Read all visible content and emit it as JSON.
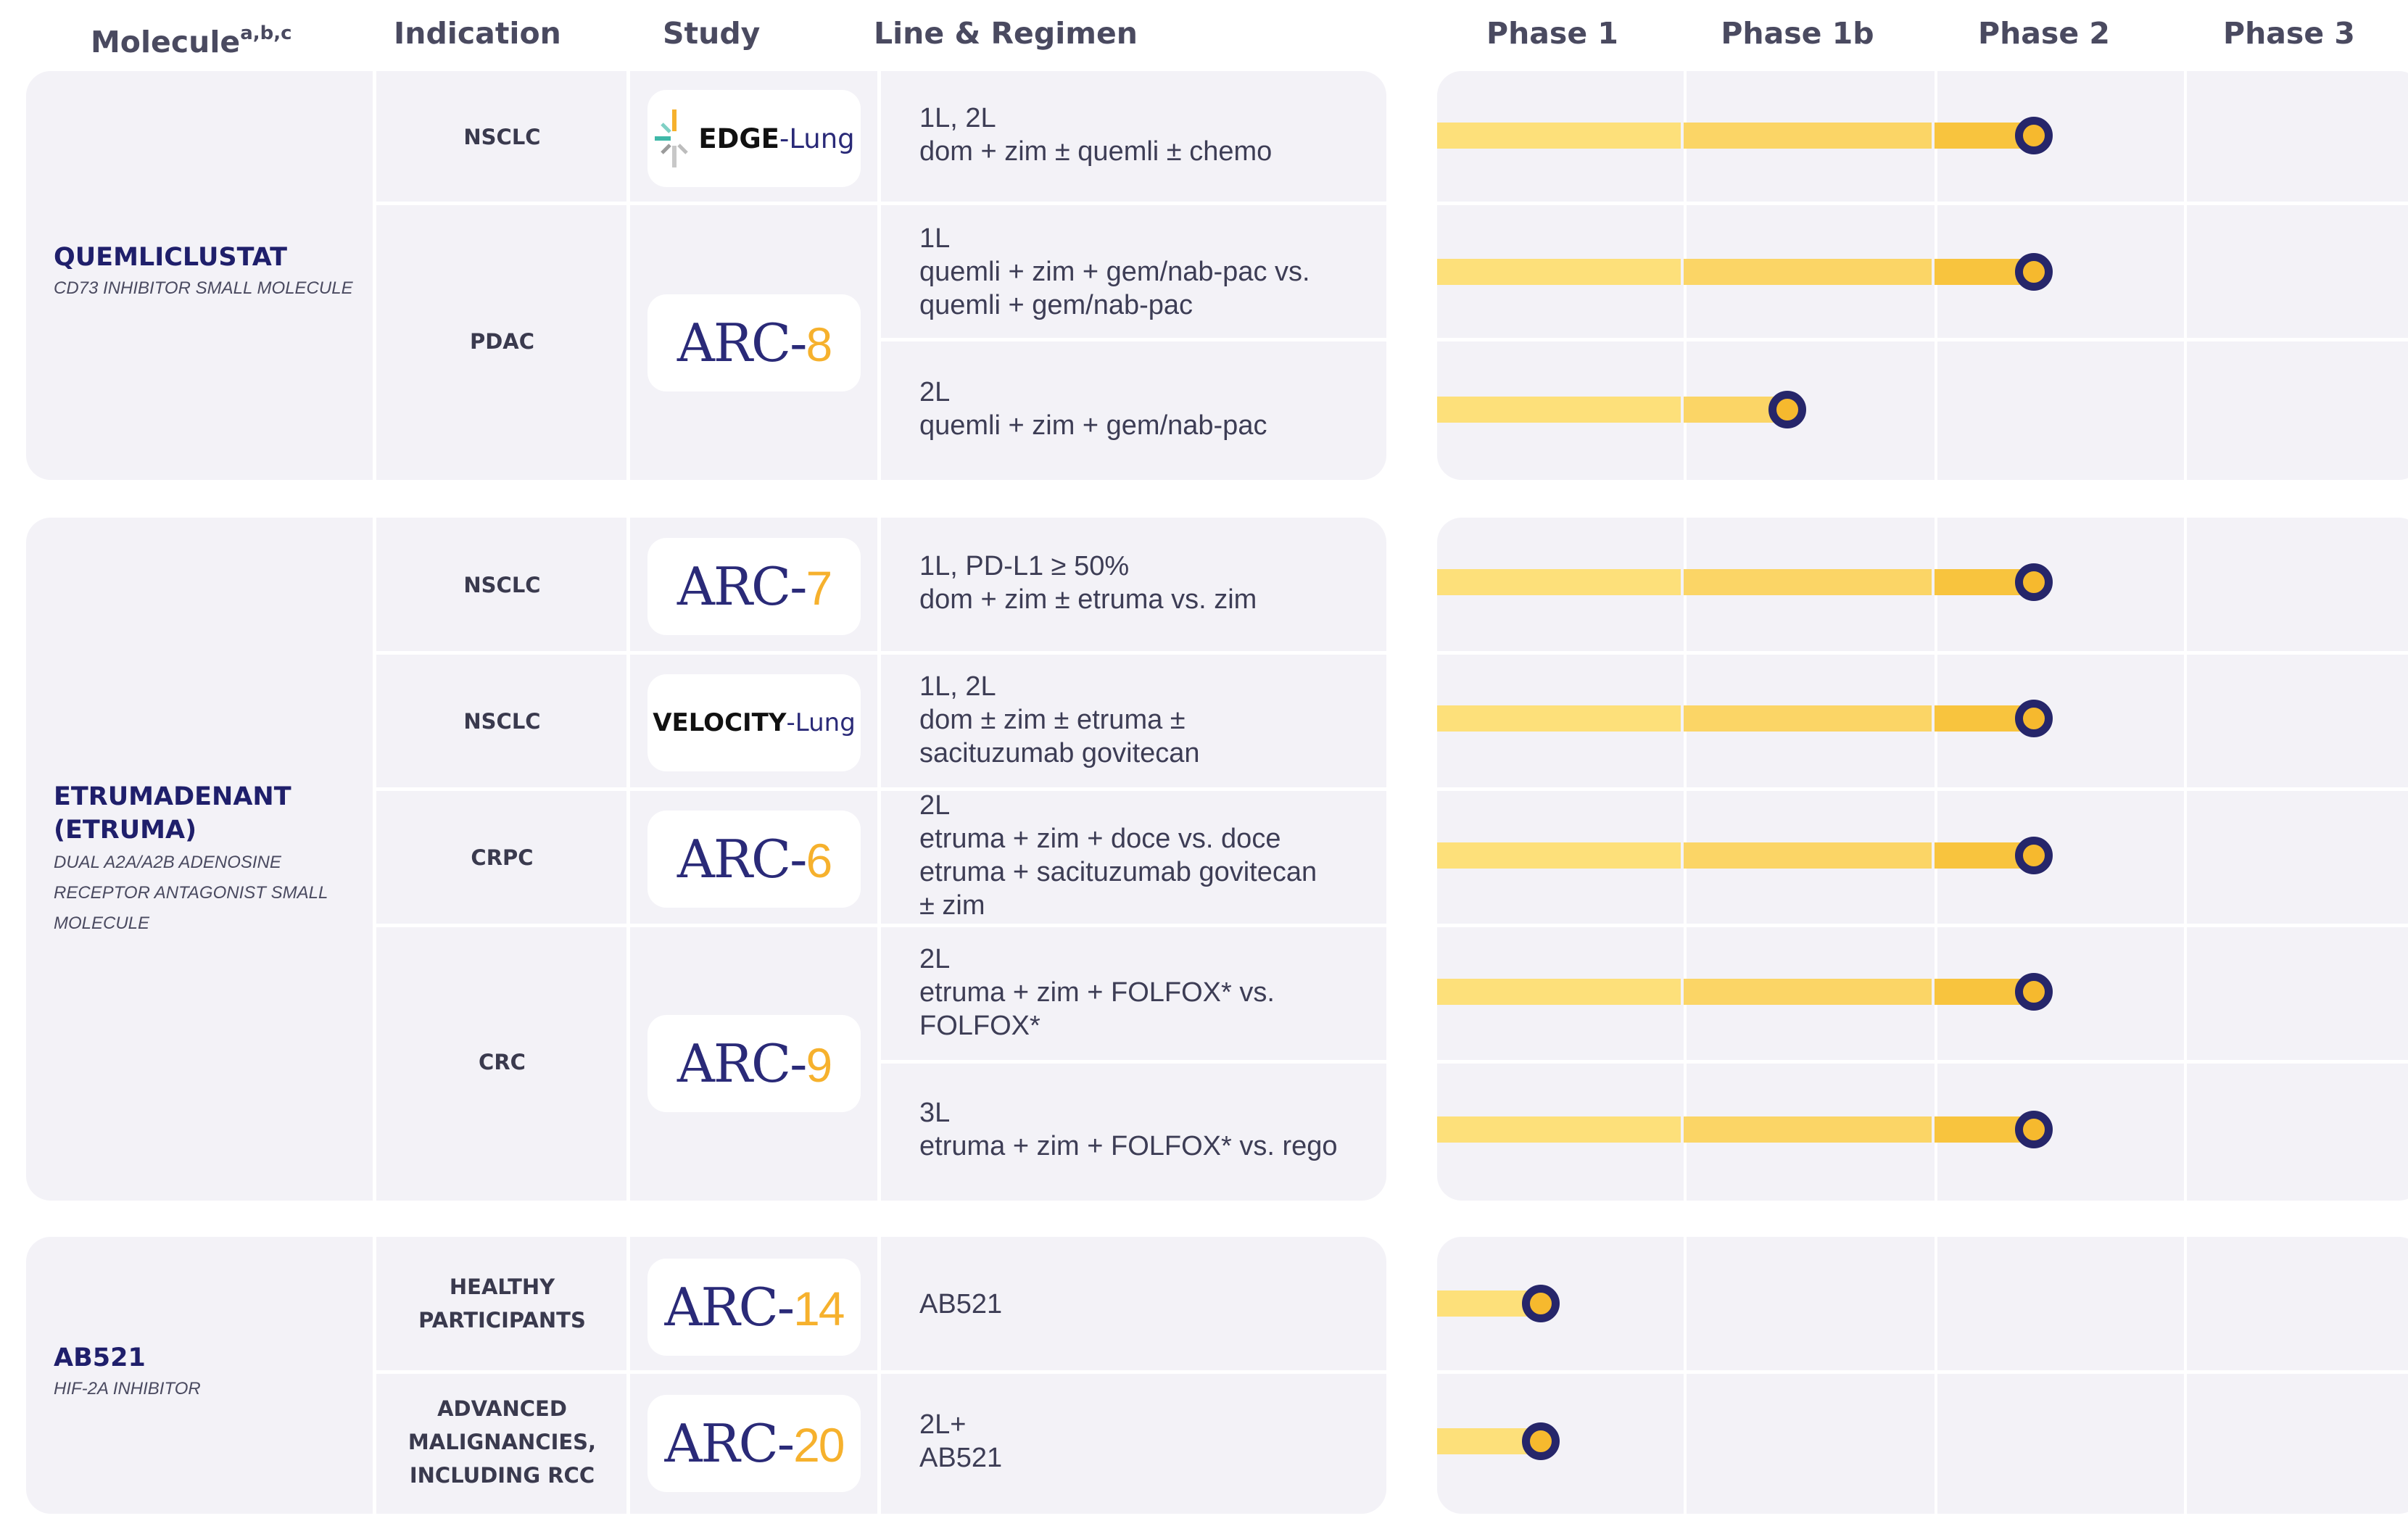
{
  "headers": {
    "molecule": "Molecule",
    "molecule_sup": "a,b,c",
    "indication": "Indication",
    "study": "Study",
    "line_regimen": "Line & Regimen",
    "phases": [
      "Phase 1",
      "Phase 1b",
      "Phase 2",
      "Phase 3"
    ]
  },
  "colors": {
    "panel": "#f3f2f7",
    "molecule_name": "#1f1f6b",
    "arc_letters": "#2a2a78",
    "arc_number": "#f6b12d",
    "bar_light": "#fde07a",
    "bar_mid": "#fbd566",
    "bar_dark": "#f8c43e",
    "progress_marker": "#26266a"
  },
  "molecules": [
    {
      "name_lines": [
        "QUEMLICLUSTAT"
      ],
      "desc_lines": [
        "CD73 INHIBITOR SMALL MOLECULE"
      ]
    },
    {
      "name_lines": [
        "ETRUMADENANT",
        "(ETRUMA)"
      ],
      "desc_lines": [
        "DUAL A2A/A2B ADENOSINE",
        "RECEPTOR ANTAGONIST SMALL",
        "MOLECULE"
      ]
    },
    {
      "name_lines": [
        "AB521"
      ],
      "desc_lines": [
        "HIF-2α INHIBITOR"
      ]
    }
  ],
  "indications": [
    [
      "NSCLC"
    ],
    [
      "PDAC"
    ],
    [
      "NSCLC"
    ],
    [
      "NSCLC"
    ],
    [
      "CRPC"
    ],
    [
      "CRC"
    ],
    [
      "HEALTHY",
      "PARTICIPANTS"
    ],
    [
      "ADVANCED",
      "MALIGNANCIES,",
      "INCLUDING RCC"
    ]
  ],
  "studies": {
    "edge_lung": {
      "brand": "EDGE",
      "suffix": "-Lung",
      "icon": "starburst-icon"
    },
    "velocity_lung": {
      "brand": "VELOCITY",
      "suffix": "-Lung"
    },
    "arc_prefix": "ARC-",
    "arc_numbers": [
      "8",
      "7",
      "6",
      "9",
      "14",
      "20"
    ]
  },
  "regimens": [
    [
      "1L, 2L",
      "dom + zim ± quemli ± chemo"
    ],
    [
      "1L",
      "quemli + zim + gem/nab-pac vs.",
      "quemli + gem/nab-pac"
    ],
    [
      "2L",
      "quemli + zim + gem/nab-pac"
    ],
    [
      "1L, PD-L1 ≥ 50%",
      "dom + zim ± etruma vs. zim"
    ],
    [
      "1L, 2L",
      "dom ± zim ± etruma ±",
      "sacituzumab govitecan"
    ],
    [
      "2L",
      "etruma + zim + doce vs. doce",
      "etruma + sacituzumab govitecan",
      "± zim"
    ],
    [
      "2L",
      "etruma + zim + FOLFOX* vs.",
      "FOLFOX*"
    ],
    [
      "3L",
      "etruma + zim + FOLFOX* vs. rego"
    ],
    [
      "AB521"
    ],
    [
      "2L+",
      "AB521"
    ]
  ],
  "phase_progress": [
    {
      "regimen": "dom + zim ± quemli ± chemo",
      "phase": "Phase 2",
      "progress": 2.42
    },
    {
      "regimen": "quemli + zim + gem/nab-pac vs. quemli + gem/nab-pac",
      "phase": "Phase 2",
      "progress": 2.42
    },
    {
      "regimen": "quemli + zim + gem/nab-pac",
      "phase": "Phase 1b",
      "progress": 1.42
    },
    {
      "regimen": "dom + zim ± etruma vs. zim",
      "phase": "Phase 2",
      "progress": 2.42
    },
    {
      "regimen": "dom ± zim ± etruma ± sacituzumab govitecan",
      "phase": "Phase 2",
      "progress": 2.42
    },
    {
      "regimen": "etruma + zim + doce vs. doce",
      "phase": "Phase 2",
      "progress": 2.42
    },
    {
      "regimen": "etruma + zim + FOLFOX* vs. FOLFOX*",
      "phase": "Phase 2",
      "progress": 2.42
    },
    {
      "regimen": "etruma + zim + FOLFOX* vs. rego",
      "phase": "Phase 2",
      "progress": 2.42
    },
    {
      "regimen": "AB521 (healthy participants)",
      "phase": "Phase 1",
      "progress": 0.42
    },
    {
      "regimen": "AB521 (advanced malignancies)",
      "phase": "Phase 1",
      "progress": 0.42
    }
  ]
}
